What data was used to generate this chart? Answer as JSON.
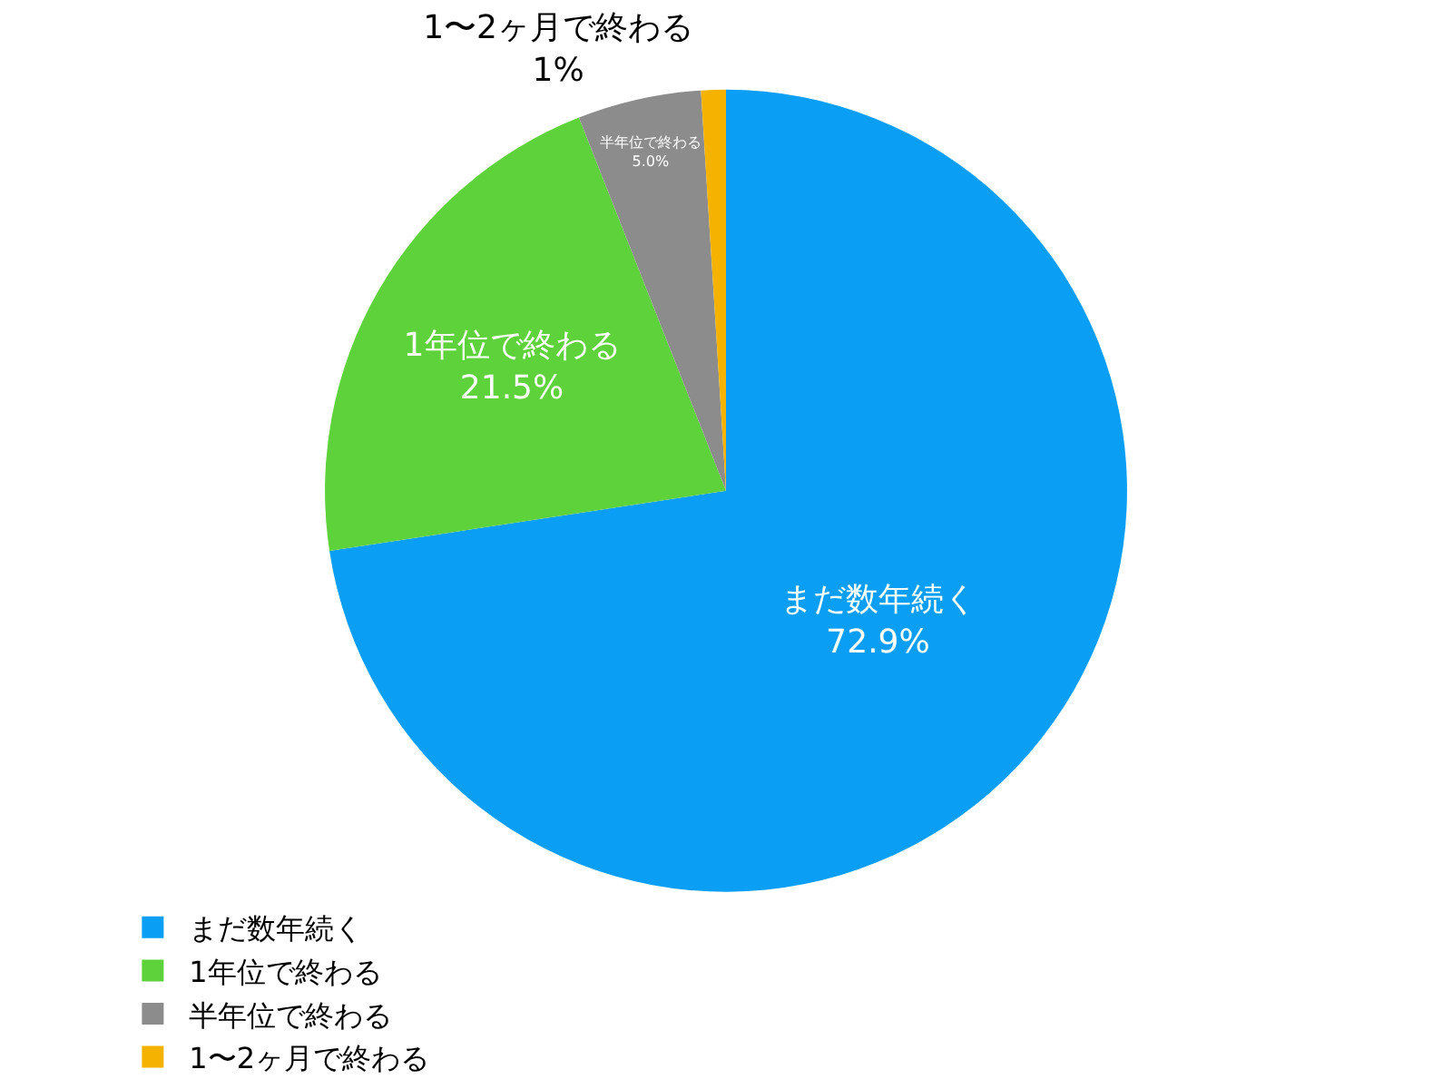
{
  "chart_data": {
    "type": "pie",
    "categories": [
      "まだ数年続く",
      "1年位で終わる",
      "半年位で終わる",
      "1〜2ヶ月で終わる"
    ],
    "values": [
      72.9,
      21.5,
      5.0,
      1
    ],
    "value_labels": [
      "72.9%",
      "21.5%",
      "5.0%",
      "1%"
    ],
    "colors": [
      "#0a9ff5",
      "#5ed23a",
      "#8c8c8c",
      "#f5b300"
    ],
    "legend": "bottom"
  }
}
